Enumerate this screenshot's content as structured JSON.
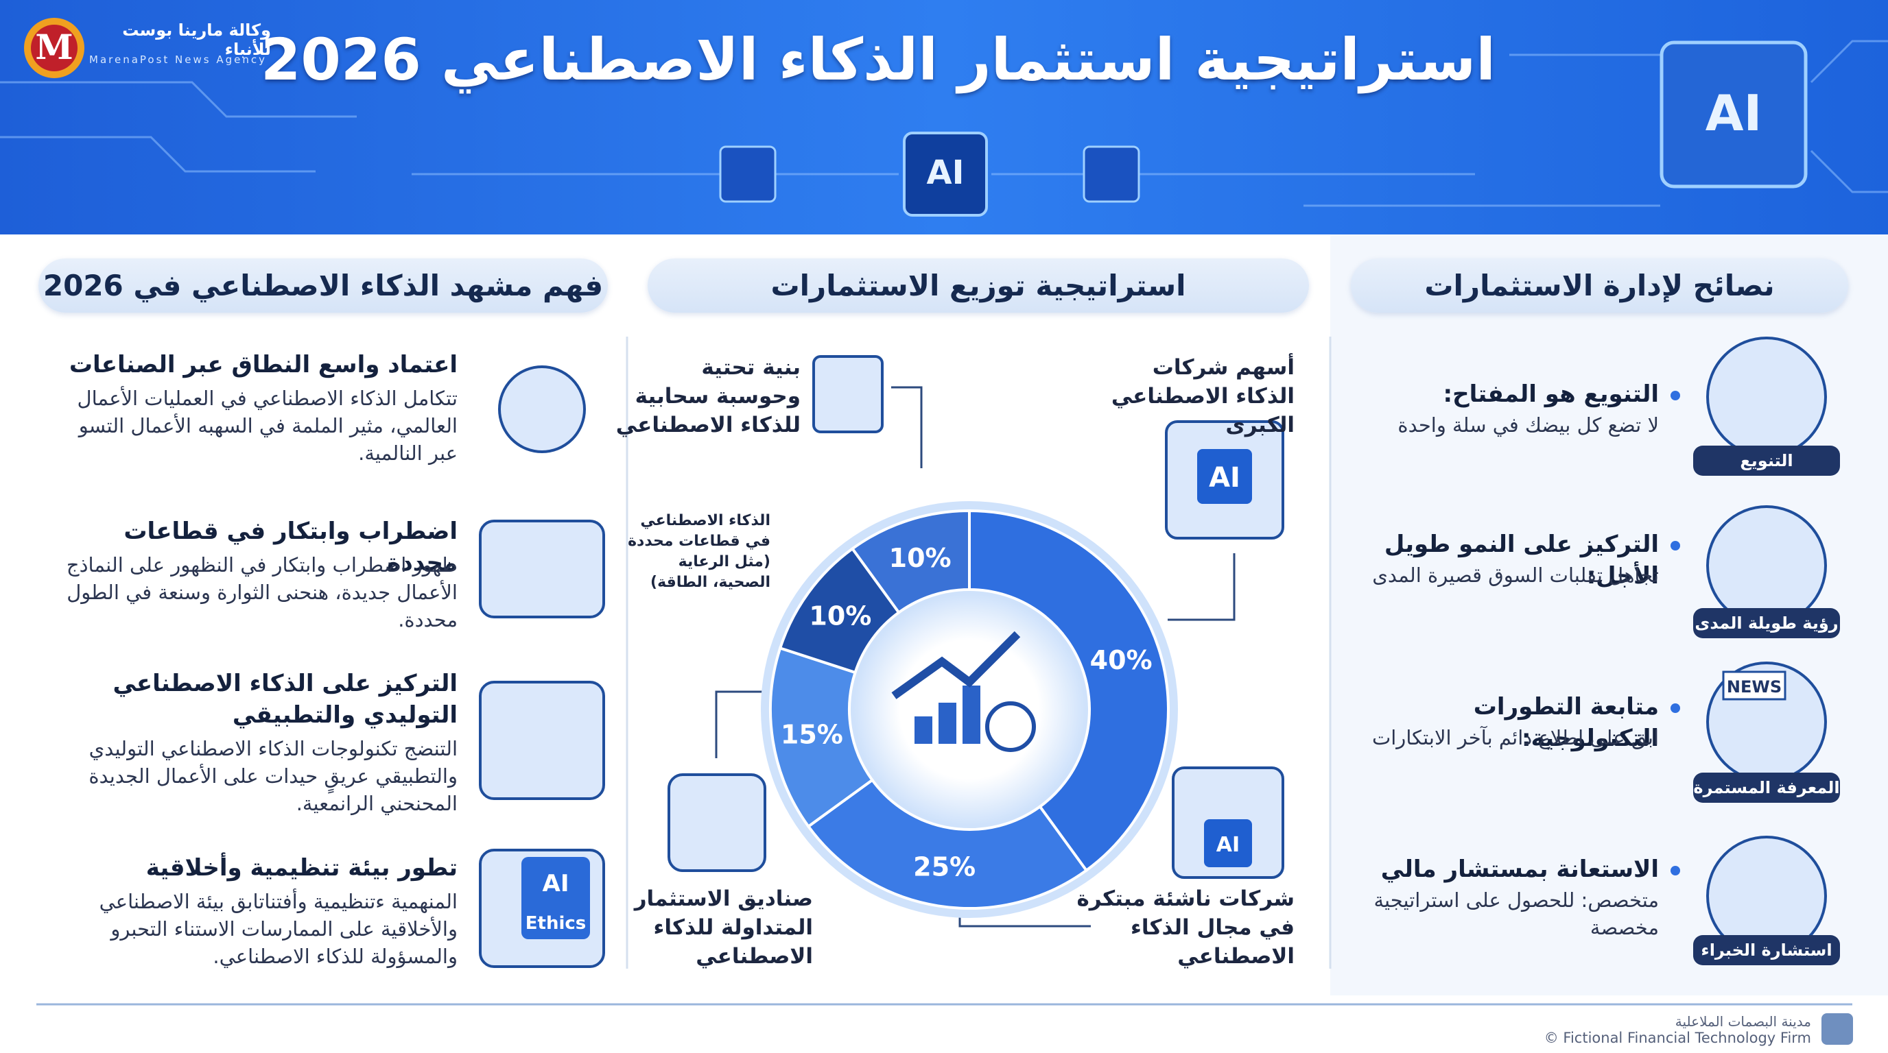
{
  "header": {
    "title": "استراتيجية استثمار الذكاء الاصطناعي 2026",
    "logo_mark": "M",
    "logo_ar": "وكالة مارينا بوست للأنباء",
    "logo_en": "MarenaPost News Agency"
  },
  "icons": {
    "ai": "AI",
    "ethics": "Ethics",
    "news": "NEWS"
  },
  "left": {
    "heading": "فهم مشهد الذكاء الاصطناعي في 2026",
    "items": [
      {
        "title": "اعتماد واسع النطاق عبر الصناعات",
        "text": "تتكامل الذكاء الاصطناعي في العمليات الأعمال العالمي، مثير الملمة في السهبه الأعمال التسو عبر النالمية."
      },
      {
        "title": "اضطراب وابتكار في قطاعات محددة",
        "text": "ظهور اضطراب وابتكار في النظهور على النماذج الأعمال جديدة، هنحنى الثوارة وسنعة في الطول محددة."
      },
      {
        "title": "التركيز على الذكاء الاصطناعي التوليدي والتطبيقي",
        "text": "التنضج تكنولوجات الذكاء الاصطناعي التوليدي والتطبيقي عريقٍ حيدات على الأعمال الجديدة المحنحني الرانمعية."
      },
      {
        "title": "تطور بيئة تنظيمية وأخلاقية",
        "text": "المنهمية ءتنظيمية وأفتناتابق بيئة الاصطناعي والأخلاقية على الممارسات الاستناء التحبرو والمسؤولة للذكاء الاصطناعي."
      }
    ]
  },
  "chart_data": {
    "type": "donut",
    "title": "استراتيجية توزيع الاستثمارات",
    "categories": [
      "أسهم شركات الذكاء الاصطناعي الكبرى",
      "شركات ناشئة مبتكرة في مجال الذكاء الاصطناعي",
      "صناديق الاستثمار المتداولة للذكاء الاصطناعي",
      "الذكاء الاصطناعي في قطاعات محددة (مثل الرعاية الصحية، الطاقة)",
      "بنية تحتية وحوسبة سحابية للذكاء الاصطناعي"
    ],
    "values": [
      40,
      25,
      15,
      10,
      10
    ],
    "value_labels": [
      "40%",
      "25%",
      "15%",
      "10%",
      "10%"
    ],
    "colors": [
      "#2f6fe0",
      "#3b7be6",
      "#4d8ce9",
      "#1f4ea6",
      "#3a72d6"
    ]
  },
  "right": {
    "heading": "نصائح لإدارة الاستثمارات",
    "items": [
      {
        "title": "التنويع هو المفتاح:",
        "text": "لا تضع كل بيضك في سلة واحدة",
        "badge": "التنويع"
      },
      {
        "title": "التركيز على النمو طويل الأجل:",
        "text": "تجاهل تقلبات السوق قصيرة المدى",
        "badge": "رؤية طويلة المدى"
      },
      {
        "title": "متابعة التطورات التكنولوجية:",
        "text": "ابق على اطلاع دائم بآخر الابتكارات",
        "badge": "المعرفة المستمرة"
      },
      {
        "title": "الاستعانة بمستشار مالي",
        "text": "متخصص: للحصول على استراتيجية مخصصة",
        "badge": "استشارة الخبراء"
      }
    ]
  },
  "footer": {
    "ar": "مدينة البصمات الملاعلية",
    "en": "© Fictional Financial Technology Firm"
  }
}
